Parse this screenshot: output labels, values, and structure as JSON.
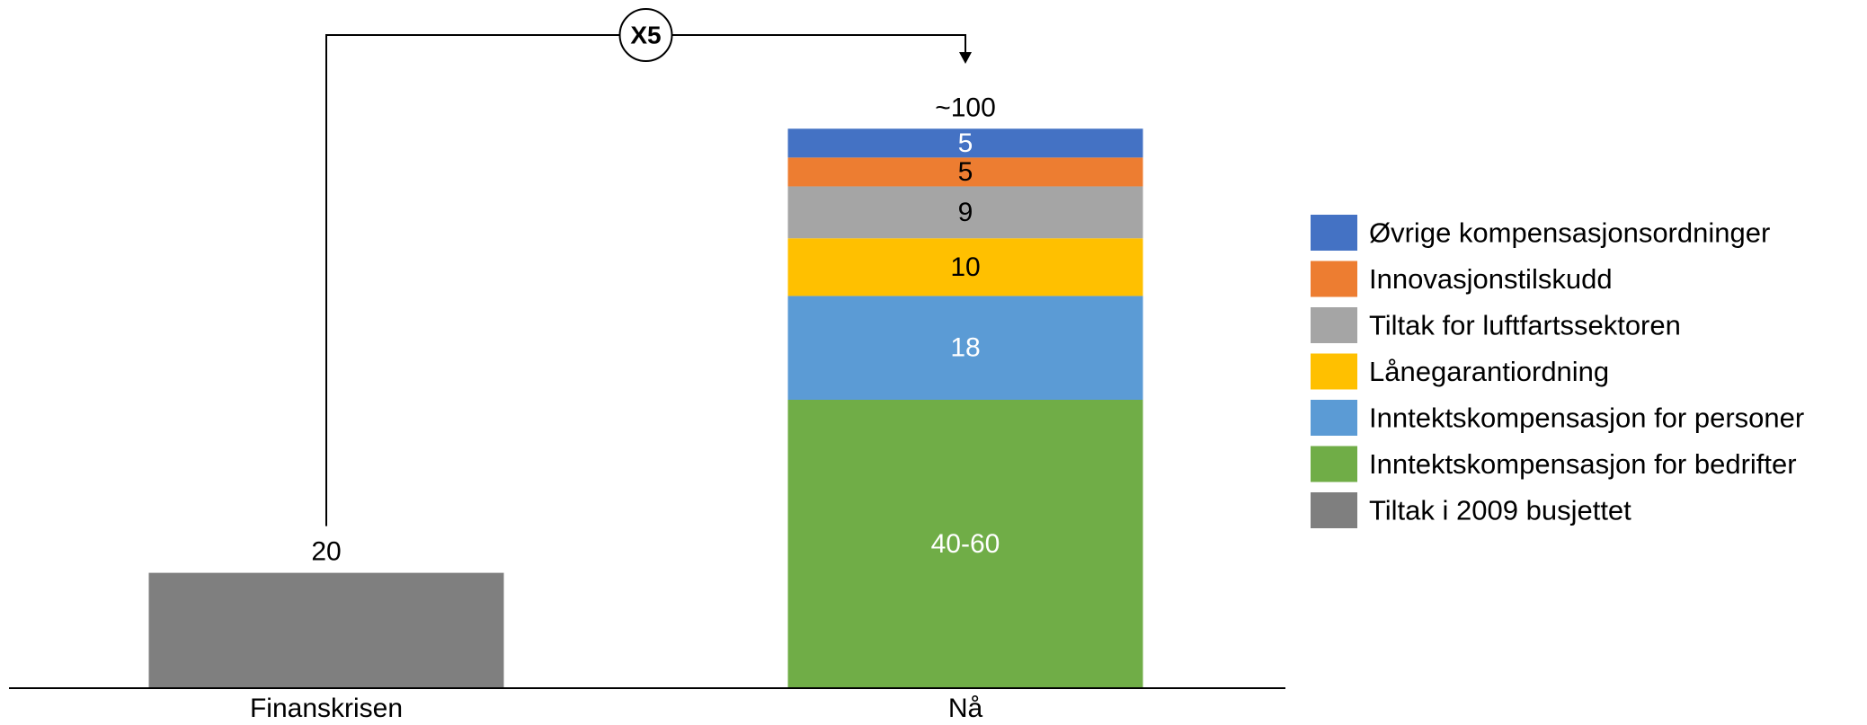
{
  "chart_data": {
    "type": "bar",
    "stacked": true,
    "categories": [
      "Finanskrisen",
      "Nå"
    ],
    "series": [
      {
        "name": "Tiltak i 2009 busjettet",
        "color": "#7f7f7f",
        "values": [
          20,
          null
        ],
        "labels": [
          "",
          ""
        ],
        "label_color": "#ffffff"
      },
      {
        "name": "Inntektskompensasjon for bedrifter",
        "color": "#70ad47",
        "values": [
          null,
          50
        ],
        "labels": [
          "",
          "40-60"
        ],
        "label_color": "#ffffff"
      },
      {
        "name": "Inntektskompensasjon for personer",
        "color": "#5b9bd5",
        "values": [
          null,
          18
        ],
        "labels": [
          "",
          "18"
        ],
        "label_color": "#ffffff"
      },
      {
        "name": "Lånegarantiordning",
        "color": "#ffc000",
        "values": [
          null,
          10
        ],
        "labels": [
          "",
          "10"
        ],
        "label_color": "#000000"
      },
      {
        "name": "Tiltak for luftfartssektoren",
        "color": "#a5a5a5",
        "values": [
          null,
          9
        ],
        "labels": [
          "",
          "9"
        ],
        "label_color": "#000000"
      },
      {
        "name": "Innovasjonstilskudd",
        "color": "#ed7d31",
        "values": [
          null,
          5
        ],
        "labels": [
          "",
          "5"
        ],
        "label_color": "#000000"
      },
      {
        "name": "Øvrige kompensasjonsordninger",
        "color": "#4472c4",
        "values": [
          null,
          5
        ],
        "labels": [
          "",
          "5"
        ],
        "label_color": "#ffffff"
      }
    ],
    "totals": [
      "20",
      "~100"
    ],
    "ylim": [
      0,
      100
    ],
    "grid": false,
    "legend_position": "right",
    "annotation": {
      "label": "X5",
      "from": "Finanskrisen",
      "to": "Nå"
    }
  }
}
